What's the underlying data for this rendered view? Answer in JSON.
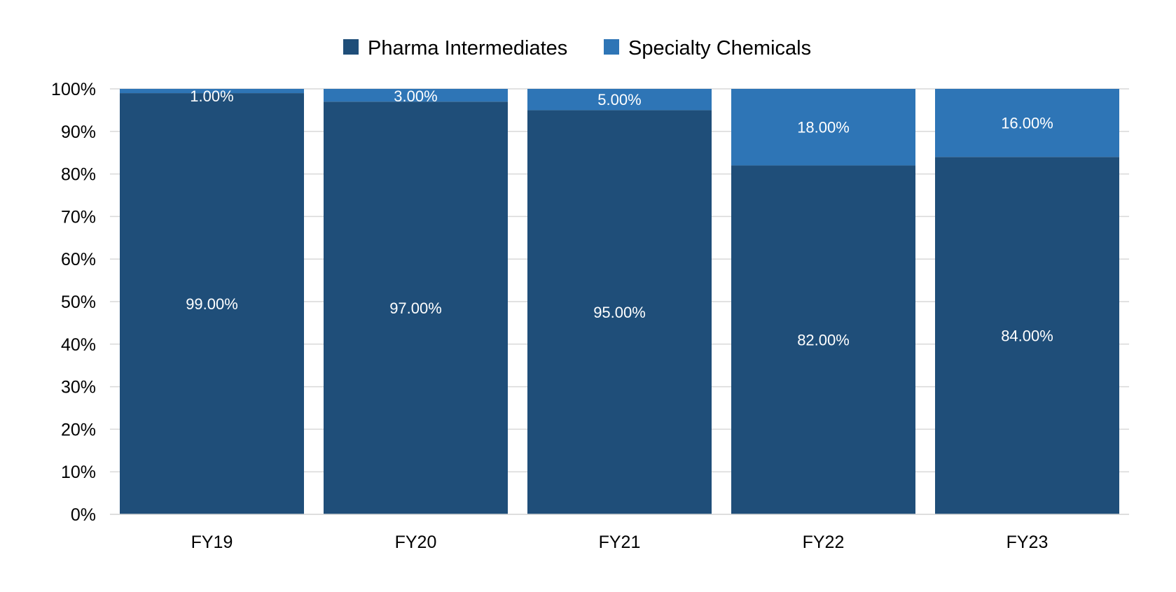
{
  "chart_data": {
    "type": "bar",
    "stacked": true,
    "percent_stacked": true,
    "categories": [
      "FY19",
      "FY20",
      "FY21",
      "FY22",
      "FY23"
    ],
    "series": [
      {
        "name": "Pharma Intermediates",
        "values": [
          99,
          97,
          95,
          82,
          84
        ],
        "labels": [
          "99.00%",
          "97.00%",
          "95.00%",
          "82.00%",
          "84.00%"
        ],
        "color": "#1f4e79"
      },
      {
        "name": "Specialty Chemicals",
        "values": [
          1,
          3,
          5,
          18,
          16
        ],
        "labels": [
          "1.00%",
          "3.00%",
          "5.00%",
          "18.00%",
          "16.00%"
        ],
        "color": "#2e75b6"
      }
    ],
    "ylim": [
      0,
      100
    ],
    "yticks": [
      "0%",
      "10%",
      "20%",
      "30%",
      "40%",
      "50%",
      "60%",
      "70%",
      "80%",
      "90%",
      "100%"
    ],
    "grid": true,
    "legend_position": "top-center"
  }
}
